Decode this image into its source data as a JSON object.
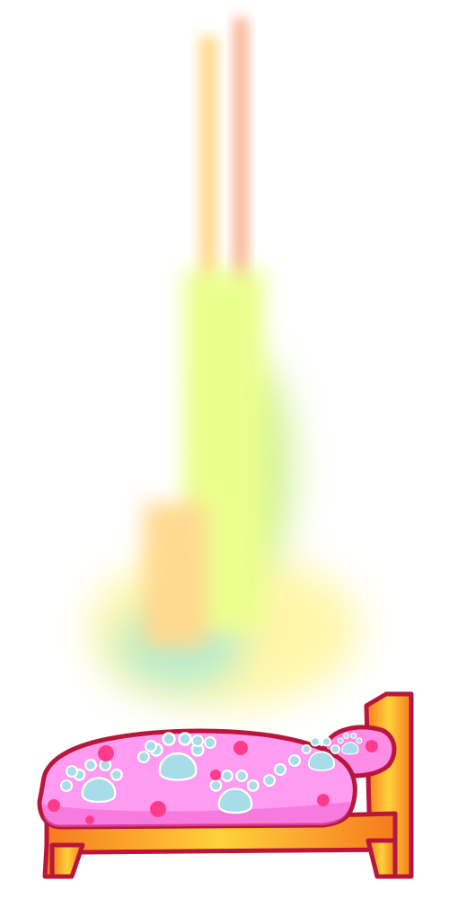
{
  "scene": {
    "background_color": "#ffffff",
    "light_beam": {
      "icon": "rainbow-light-beam",
      "colors": [
        "#fff59a",
        "#ffd27a",
        "#f7a07a",
        "#c8f07a",
        "#a8e8c8",
        "#e8ff7a"
      ]
    },
    "bed": {
      "icon": "bed",
      "frame_color": "#f57a1e",
      "frame_highlight": "#ffd23a",
      "outline_color": "#b8163a",
      "blanket_color": "#ff9bf0",
      "blanket_shadow": "#f060d0",
      "pillow_color": "#ff8ce6",
      "paw_print_color": "#a8dce8",
      "dot_color": "#ff3c8c"
    }
  }
}
